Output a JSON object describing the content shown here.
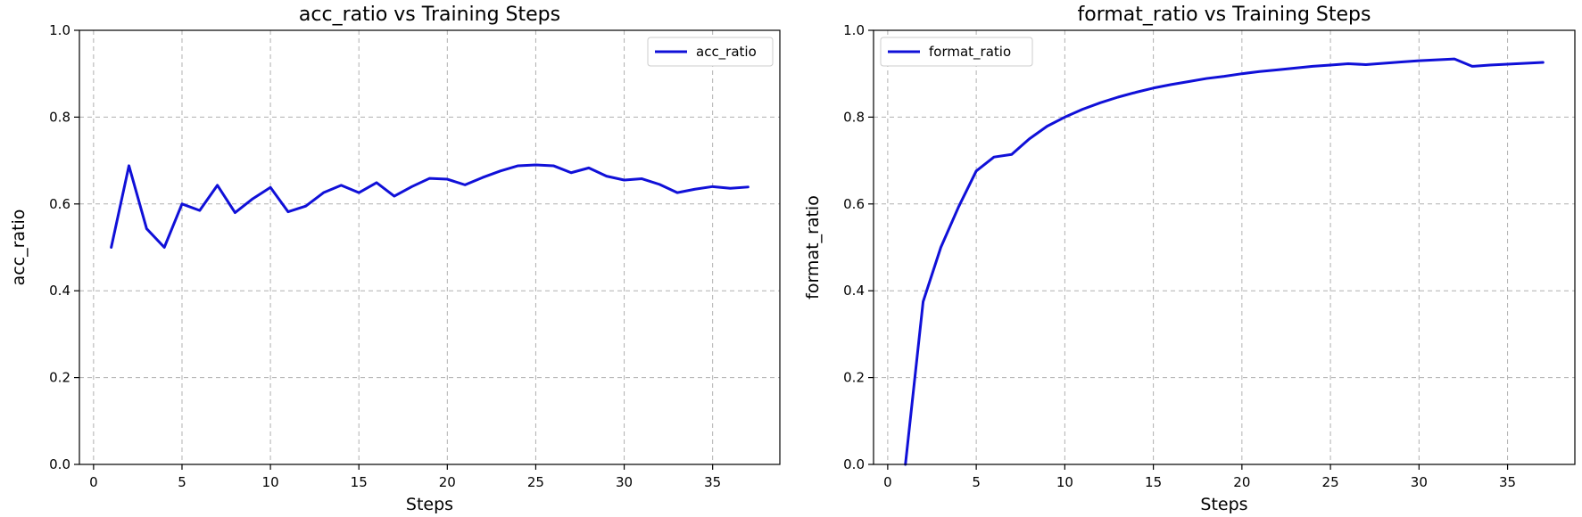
{
  "chart_data": [
    {
      "type": "line",
      "title": "acc_ratio vs Training Steps",
      "xlabel": "Steps",
      "ylabel": "acc_ratio",
      "xlim": [
        -0.8,
        38.8
      ],
      "ylim": [
        0,
        1
      ],
      "xticks": [
        0,
        5,
        10,
        15,
        20,
        25,
        30,
        35
      ],
      "yticks": [
        0.0,
        0.2,
        0.4,
        0.6,
        0.8,
        1.0
      ],
      "grid": true,
      "legend_position": "top-right",
      "series": [
        {
          "name": "acc_ratio",
          "color": "#1010d8",
          "x": [
            1,
            2,
            3,
            4,
            5,
            6,
            7,
            8,
            9,
            10,
            11,
            12,
            13,
            14,
            15,
            16,
            17,
            18,
            19,
            20,
            21,
            22,
            23,
            24,
            25,
            26,
            27,
            28,
            29,
            30,
            31,
            32,
            33,
            34,
            35,
            36,
            37
          ],
          "y": [
            0.5,
            0.688,
            0.543,
            0.5,
            0.6,
            0.585,
            0.643,
            0.58,
            0.612,
            0.638,
            0.582,
            0.595,
            0.626,
            0.643,
            0.626,
            0.649,
            0.618,
            0.64,
            0.659,
            0.657,
            0.644,
            0.661,
            0.676,
            0.688,
            0.69,
            0.688,
            0.672,
            0.683,
            0.664,
            0.655,
            0.658,
            0.645,
            0.626,
            0.634,
            0.64,
            0.636,
            0.639
          ]
        }
      ]
    },
    {
      "type": "line",
      "title": "format_ratio vs Training Steps",
      "xlabel": "Steps",
      "ylabel": "format_ratio",
      "xlim": [
        -0.8,
        38.8
      ],
      "ylim": [
        0,
        1
      ],
      "xticks": [
        0,
        5,
        10,
        15,
        20,
        25,
        30,
        35
      ],
      "yticks": [
        0.0,
        0.2,
        0.4,
        0.6,
        0.8,
        1.0
      ],
      "grid": true,
      "legend_position": "top-left",
      "series": [
        {
          "name": "format_ratio",
          "color": "#1010d8",
          "x": [
            1,
            2,
            3,
            4,
            5,
            6,
            7,
            8,
            9,
            10,
            11,
            12,
            13,
            14,
            15,
            16,
            17,
            18,
            19,
            20,
            21,
            22,
            23,
            24,
            25,
            26,
            27,
            28,
            29,
            30,
            31,
            32,
            33,
            34,
            35,
            36,
            37
          ],
          "y": [
            0.0,
            0.375,
            0.5,
            0.593,
            0.676,
            0.708,
            0.714,
            0.75,
            0.779,
            0.8,
            0.818,
            0.833,
            0.846,
            0.857,
            0.867,
            0.875,
            0.882,
            0.889,
            0.894,
            0.9,
            0.905,
            0.909,
            0.913,
            0.917,
            0.92,
            0.923,
            0.921,
            0.924,
            0.927,
            0.93,
            0.932,
            0.934,
            0.917,
            0.92,
            0.922,
            0.924,
            0.926
          ]
        }
      ]
    }
  ]
}
